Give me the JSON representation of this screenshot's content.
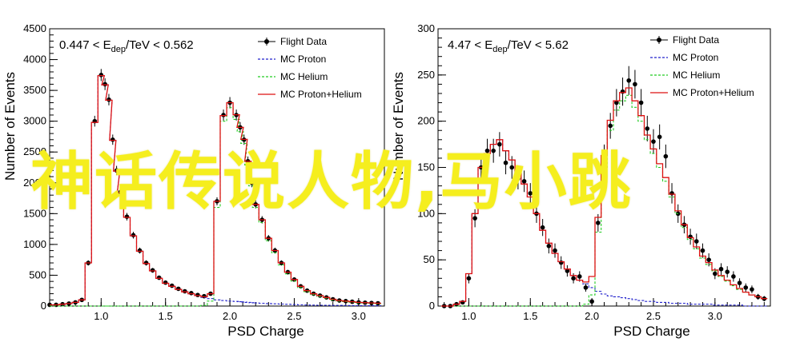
{
  "watermark_text": "神话传说人物,马小跳",
  "chart_data": [
    {
      "type": "line",
      "annotation": "0.447 < E_dep/TeV < 0.562",
      "annotation_parts": {
        "left": "0.447 < E",
        "sub": "dep",
        "right": "/TeV < 0.562"
      },
      "xlabel": "PSD Charge",
      "ylabel": "Number of Events",
      "xlim": [
        0.6,
        3.2
      ],
      "ylim": [
        0,
        4500
      ],
      "xticks": [
        1.0,
        1.5,
        2.0,
        2.5,
        3.0
      ],
      "xtick_labels": [
        "1.0",
        "1.5",
        "2.0",
        "2.5",
        "3.0"
      ],
      "yticks": [
        0,
        500,
        1000,
        1500,
        2000,
        2500,
        3000,
        3500,
        4000,
        4500
      ],
      "ytick_labels": [
        "0",
        "500",
        "1000",
        "1500",
        "2000",
        "2500",
        "3000",
        "3500",
        "4000",
        "4500"
      ],
      "legend": [
        "Flight Data",
        "MC Proton",
        "MC Helium",
        "MC Proton+Helium"
      ],
      "legend_position": "top-right",
      "x": [
        0.6,
        0.65,
        0.7,
        0.75,
        0.8,
        0.85,
        0.9,
        0.95,
        1.0,
        1.03,
        1.06,
        1.09,
        1.12,
        1.15,
        1.2,
        1.25,
        1.3,
        1.35,
        1.4,
        1.45,
        1.5,
        1.55,
        1.6,
        1.65,
        1.7,
        1.75,
        1.8,
        1.85,
        1.9,
        1.95,
        2.0,
        2.05,
        2.08,
        2.11,
        2.14,
        2.17,
        2.2,
        2.25,
        2.3,
        2.35,
        2.4,
        2.45,
        2.5,
        2.55,
        2.6,
        2.65,
        2.7,
        2.75,
        2.8,
        2.85,
        2.9,
        2.95,
        3.0,
        3.05,
        3.1,
        3.15
      ],
      "series": [
        {
          "name": "Flight Data",
          "style": "points",
          "color": "#000000",
          "values": [
            20,
            20,
            30,
            40,
            60,
            100,
            700,
            3000,
            3750,
            3600,
            3350,
            2700,
            2200,
            1850,
            1450,
            1150,
            900,
            700,
            580,
            460,
            380,
            330,
            280,
            240,
            210,
            180,
            160,
            200,
            1700,
            3100,
            3300,
            3100,
            2900,
            2700,
            2350,
            2000,
            1650,
            1400,
            1100,
            900,
            700,
            550,
            430,
            320,
            250,
            200,
            170,
            140,
            110,
            90,
            80,
            70,
            60,
            55,
            50,
            45
          ]
        },
        {
          "name": "MC Proton",
          "style": "dashed",
          "color": "#2222cc",
          "values": [
            20,
            20,
            30,
            40,
            60,
            100,
            700,
            2980,
            3740,
            3590,
            3340,
            2690,
            2190,
            1840,
            1440,
            1140,
            890,
            690,
            570,
            450,
            370,
            320,
            270,
            230,
            200,
            170,
            140,
            120,
            100,
            90,
            80,
            75,
            70,
            65,
            60,
            55,
            50,
            45,
            40,
            36,
            32,
            28,
            24,
            20,
            17,
            15,
            13,
            12,
            11,
            10,
            9,
            8,
            7,
            6,
            5,
            5
          ]
        },
        {
          "name": "MC Helium",
          "style": "dashed",
          "color": "#22cc22",
          "values": [
            0,
            0,
            0,
            0,
            0,
            0,
            0,
            0,
            0,
            0,
            0,
            0,
            0,
            0,
            0,
            0,
            0,
            0,
            0,
            0,
            0,
            0,
            0,
            0,
            0,
            0,
            10,
            80,
            1600,
            3000,
            3220,
            3030,
            2830,
            2640,
            2290,
            1950,
            1600,
            1355,
            1060,
            865,
            668,
            522,
            406,
            300,
            233,
            185,
            157,
            128,
            99,
            80,
            71,
            62,
            53,
            49,
            45,
            40
          ]
        },
        {
          "name": "MC Proton+Helium",
          "style": "solid",
          "color": "#dd1111",
          "values": [
            20,
            20,
            30,
            40,
            60,
            100,
            700,
            2980,
            3740,
            3590,
            3340,
            2690,
            2190,
            1840,
            1440,
            1140,
            890,
            690,
            570,
            450,
            370,
            320,
            270,
            230,
            200,
            170,
            150,
            200,
            1700,
            3090,
            3300,
            3105,
            2900,
            2705,
            2350,
            2005,
            1650,
            1400,
            1100,
            901,
            700,
            550,
            430,
            320,
            250,
            200,
            170,
            140,
            110,
            90,
            80,
            70,
            60,
            55,
            50,
            45
          ]
        }
      ]
    },
    {
      "type": "line",
      "annotation": "4.47 < E_dep/TeV < 5.62",
      "annotation_parts": {
        "left": "4.47 < E",
        "sub": "dep",
        "right": "/TeV < 5.62"
      },
      "xlabel": "PSD Charge",
      "ylabel": "Number of Events",
      "xlim": [
        0.75,
        3.45
      ],
      "ylim": [
        0,
        300
      ],
      "xticks": [
        1.0,
        1.5,
        2.0,
        2.5,
        3.0
      ],
      "xtick_labels": [
        "1.0",
        "1.5",
        "2.0",
        "2.5",
        "3.0"
      ],
      "yticks": [
        0,
        50,
        100,
        150,
        200,
        250,
        300
      ],
      "ytick_labels": [
        "0",
        "50",
        "100",
        "150",
        "200",
        "250",
        "300"
      ],
      "legend": [
        "Flight Data",
        "MC Proton",
        "MC Helium",
        "MC Proton+Helium"
      ],
      "legend_position": "top-right",
      "x": [
        0.8,
        0.85,
        0.9,
        0.95,
        1.0,
        1.05,
        1.1,
        1.15,
        1.2,
        1.25,
        1.3,
        1.35,
        1.4,
        1.45,
        1.5,
        1.55,
        1.6,
        1.65,
        1.7,
        1.75,
        1.8,
        1.85,
        1.9,
        1.95,
        2.0,
        2.05,
        2.1,
        2.15,
        2.2,
        2.25,
        2.3,
        2.35,
        2.4,
        2.45,
        2.5,
        2.55,
        2.6,
        2.65,
        2.7,
        2.75,
        2.8,
        2.85,
        2.9,
        2.95,
        3.0,
        3.05,
        3.1,
        3.15,
        3.2,
        3.25,
        3.3,
        3.35,
        3.4
      ],
      "series": [
        {
          "name": "Flight Data",
          "style": "points",
          "color": "#000000",
          "values": [
            0,
            0,
            2,
            4,
            30,
            95,
            150,
            168,
            168,
            175,
            155,
            150,
            138,
            135,
            122,
            100,
            85,
            65,
            60,
            47,
            38,
            30,
            32,
            20,
            5,
            90,
            162,
            195,
            220,
            232,
            244,
            240,
            220,
            192,
            178,
            183,
            162,
            122,
            100,
            88,
            75,
            70,
            60,
            50,
            35,
            40,
            37,
            32,
            25,
            20,
            18,
            10,
            8
          ]
        },
        {
          "name": "MC Proton",
          "style": "dashed",
          "color": "#2222cc",
          "values": [
            0,
            0,
            2,
            5,
            35,
            100,
            150,
            165,
            175,
            180,
            168,
            158,
            145,
            132,
            118,
            100,
            82,
            68,
            57,
            48,
            40,
            33,
            28,
            24,
            20,
            16,
            13,
            11,
            10,
            9,
            8,
            7,
            6,
            5,
            5,
            4,
            4,
            3,
            3,
            3,
            2,
            2,
            2,
            2,
            1,
            1,
            1,
            1,
            1,
            0,
            0,
            0,
            0
          ]
        },
        {
          "name": "MC Helium",
          "style": "dashed",
          "color": "#22cc22",
          "values": [
            0,
            0,
            0,
            0,
            0,
            0,
            0,
            0,
            0,
            0,
            0,
            0,
            0,
            0,
            0,
            0,
            0,
            0,
            0,
            0,
            0,
            0,
            0,
            2,
            12,
            80,
            150,
            190,
            212,
            222,
            228,
            215,
            200,
            180,
            165,
            150,
            135,
            118,
            100,
            85,
            72,
            62,
            52,
            45,
            38,
            32,
            27,
            22,
            18,
            15,
            12,
            10,
            8
          ]
        },
        {
          "name": "MC Proton+Helium",
          "style": "solid",
          "color": "#dd1111",
          "values": [
            0,
            0,
            2,
            5,
            35,
            100,
            150,
            165,
            175,
            180,
            168,
            158,
            145,
            132,
            118,
            100,
            82,
            68,
            57,
            48,
            40,
            33,
            28,
            26,
            32,
            96,
            163,
            201,
            222,
            231,
            236,
            222,
            206,
            185,
            170,
            154,
            139,
            121,
            103,
            88,
            74,
            64,
            54,
            47,
            39,
            33,
            28,
            23,
            19,
            15,
            12,
            10,
            8
          ]
        }
      ]
    }
  ]
}
